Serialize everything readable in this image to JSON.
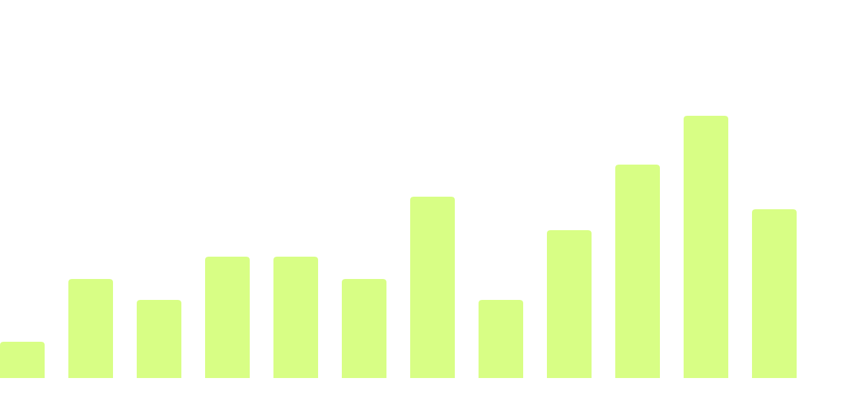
{
  "chart_data": {
    "type": "bar",
    "categories": [
      "",
      "",
      "",
      "",
      "",
      "",
      "",
      "",
      "",
      "",
      "",
      ""
    ],
    "values": [
      52,
      142,
      112,
      174,
      174,
      142,
      260,
      112,
      212,
      306,
      376,
      242
    ],
    "ylim": [
      0,
      542
    ],
    "grid": false,
    "legend": "none",
    "bar_color": "#d8fe85"
  }
}
